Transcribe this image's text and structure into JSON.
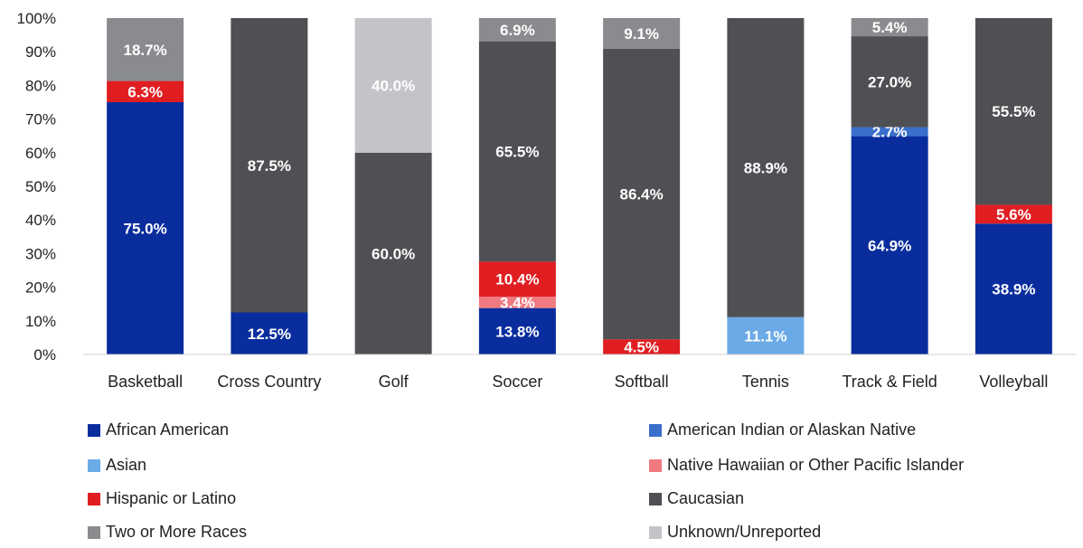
{
  "chart_data": {
    "type": "bar",
    "stacked": true,
    "percent": true,
    "title": "",
    "xlabel": "",
    "ylabel": "",
    "ylim": [
      0,
      100
    ],
    "yticks": [
      "0%",
      "10%",
      "20%",
      "30%",
      "40%",
      "50%",
      "60%",
      "70%",
      "80%",
      "90%",
      "100%"
    ],
    "grid": false,
    "legend_position": "bottom",
    "categories": [
      "Basketball",
      "Cross Country",
      "Golf",
      "Soccer",
      "Softball",
      "Tennis",
      "Track & Field",
      "Volleyball"
    ],
    "series": [
      {
        "name": "African American",
        "color": "#0a2d9e",
        "values": [
          75.0,
          12.5,
          0,
          13.8,
          0,
          0,
          64.9,
          38.9
        ]
      },
      {
        "name": "American Indian or Alaskan Native",
        "color": "#3a6fcb",
        "values": [
          0,
          0,
          0,
          0,
          0,
          0,
          2.7,
          0
        ]
      },
      {
        "name": "Asian",
        "color": "#6aaae6",
        "values": [
          0,
          0,
          0,
          0,
          0,
          11.1,
          0,
          0
        ]
      },
      {
        "name": "Native Hawaiian or Other Pacific Islander",
        "color": "#ef7a80",
        "values": [
          0,
          0,
          0,
          3.4,
          0,
          0,
          0,
          0
        ]
      },
      {
        "name": "Hispanic or Latino",
        "color": "#e01e22",
        "values": [
          6.3,
          0,
          0,
          10.4,
          4.5,
          0,
          0,
          5.6
        ]
      },
      {
        "name": "Caucasian",
        "color": "#4f5053",
        "values": [
          0,
          87.5,
          60.0,
          65.5,
          86.4,
          88.9,
          27.0,
          55.5
        ]
      },
      {
        "name": "Two or More Races",
        "color": "#8a8b8e",
        "values": [
          18.7,
          0,
          0,
          6.9,
          9.1,
          0,
          5.4,
          0
        ]
      },
      {
        "name": "Unknown/Unreported",
        "color": "#c2c4c7",
        "values": [
          0,
          0,
          40.0,
          0,
          0,
          0,
          0,
          0
        ]
      }
    ]
  }
}
